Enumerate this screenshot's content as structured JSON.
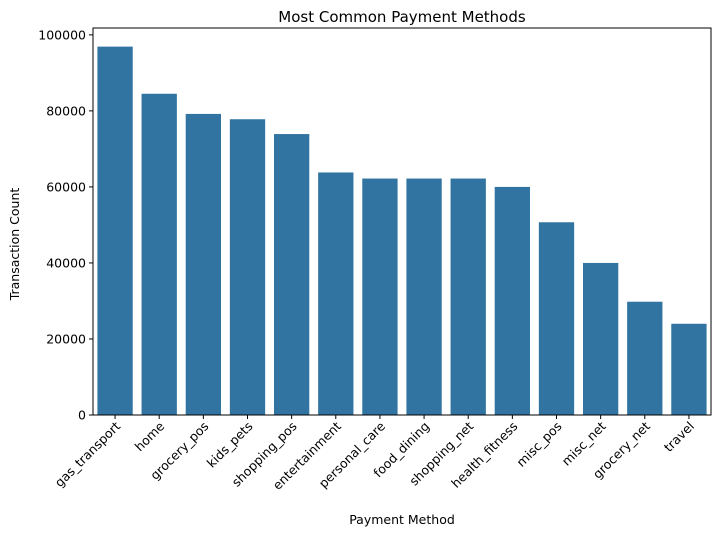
{
  "chart_data": {
    "type": "bar",
    "title": "Most Common Payment Methods",
    "xlabel": "Payment Method",
    "ylabel": "Transaction Count",
    "categories": [
      "gas_transport",
      "home",
      "grocery_pos",
      "kids_pets",
      "shopping_pos",
      "entertainment",
      "personal_care",
      "food_dining",
      "shopping_net",
      "health_fitness",
      "misc_pos",
      "misc_net",
      "grocery_net",
      "travel"
    ],
    "values": [
      96900,
      84500,
      79200,
      77800,
      73900,
      63800,
      62200,
      62200,
      62200,
      60000,
      50700,
      40000,
      29800,
      24000
    ],
    "ylim": [
      0,
      101800
    ],
    "yticks": [
      0,
      20000,
      40000,
      60000,
      80000,
      100000
    ],
    "ytick_labels": [
      "0",
      "20000",
      "40000",
      "60000",
      "80000",
      "100000"
    ],
    "bar_color": "#3274a1",
    "grid": false,
    "legend": "none"
  }
}
